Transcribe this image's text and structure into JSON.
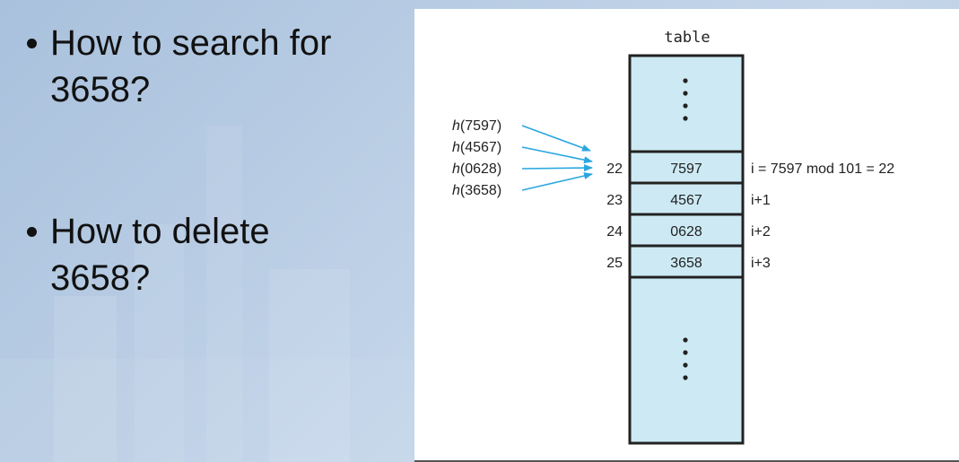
{
  "bullets": [
    {
      "line1": "How to search for",
      "line2": "3658?"
    },
    {
      "line1": "How to delete",
      "line2": "3658?"
    }
  ],
  "figure": {
    "table_label": "table",
    "hash_calls": [
      {
        "fn": "h",
        "arg": "(7597)"
      },
      {
        "fn": "h",
        "arg": "(4567)"
      },
      {
        "fn": "h",
        "arg": "(0628)"
      },
      {
        "fn": "h",
        "arg": "(3658)"
      }
    ],
    "rows": [
      {
        "index": "22",
        "value": "7597",
        "note": "i = 7597 mod 101 = 22"
      },
      {
        "index": "23",
        "value": "4567",
        "note": "i+1"
      },
      {
        "index": "24",
        "value": "0628",
        "note": "i+2"
      },
      {
        "index": "25",
        "value": "3658",
        "note": "i+3"
      }
    ],
    "colors": {
      "cell_fill": "#cdeaf4",
      "arrow": "#2aa7df",
      "border": "#222222"
    }
  }
}
